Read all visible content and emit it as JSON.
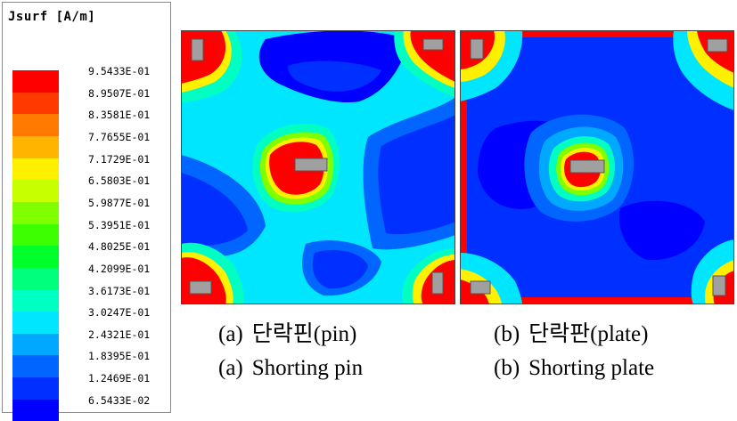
{
  "legend": {
    "title": "Jsurf [A/m]",
    "levels": [
      {
        "label": "9.5433E-01",
        "color": "#ff0000"
      },
      {
        "label": "8.9507E-01",
        "color": "#ff3a00"
      },
      {
        "label": "8.3581E-01",
        "color": "#ff7a00"
      },
      {
        "label": "7.7655E-01",
        "color": "#ffb400"
      },
      {
        "label": "7.1729E-01",
        "color": "#fff000"
      },
      {
        "label": "6.5803E-01",
        "color": "#c8ff00"
      },
      {
        "label": "5.9877E-01",
        "color": "#80ff00"
      },
      {
        "label": "5.3951E-01",
        "color": "#3cff00"
      },
      {
        "label": "4.8025E-01",
        "color": "#00ff2a"
      },
      {
        "label": "4.2099E-01",
        "color": "#00ff7a"
      },
      {
        "label": "3.6173E-01",
        "color": "#00ffc2"
      },
      {
        "label": "3.0247E-01",
        "color": "#00e6ff"
      },
      {
        "label": "2.4321E-01",
        "color": "#00a8ff"
      },
      {
        "label": "1.8395E-01",
        "color": "#0066ff"
      },
      {
        "label": "1.2469E-01",
        "color": "#0030ff"
      },
      {
        "label": "6.5433E-02",
        "color": "#0000ff"
      }
    ]
  },
  "panels": [
    {
      "prefix": "(a)",
      "korean": "단락핀(pin)",
      "english": "Shorting pin"
    },
    {
      "prefix": "(b)",
      "korean": "단락판(plate)",
      "english": "Shorting plate"
    }
  ]
}
